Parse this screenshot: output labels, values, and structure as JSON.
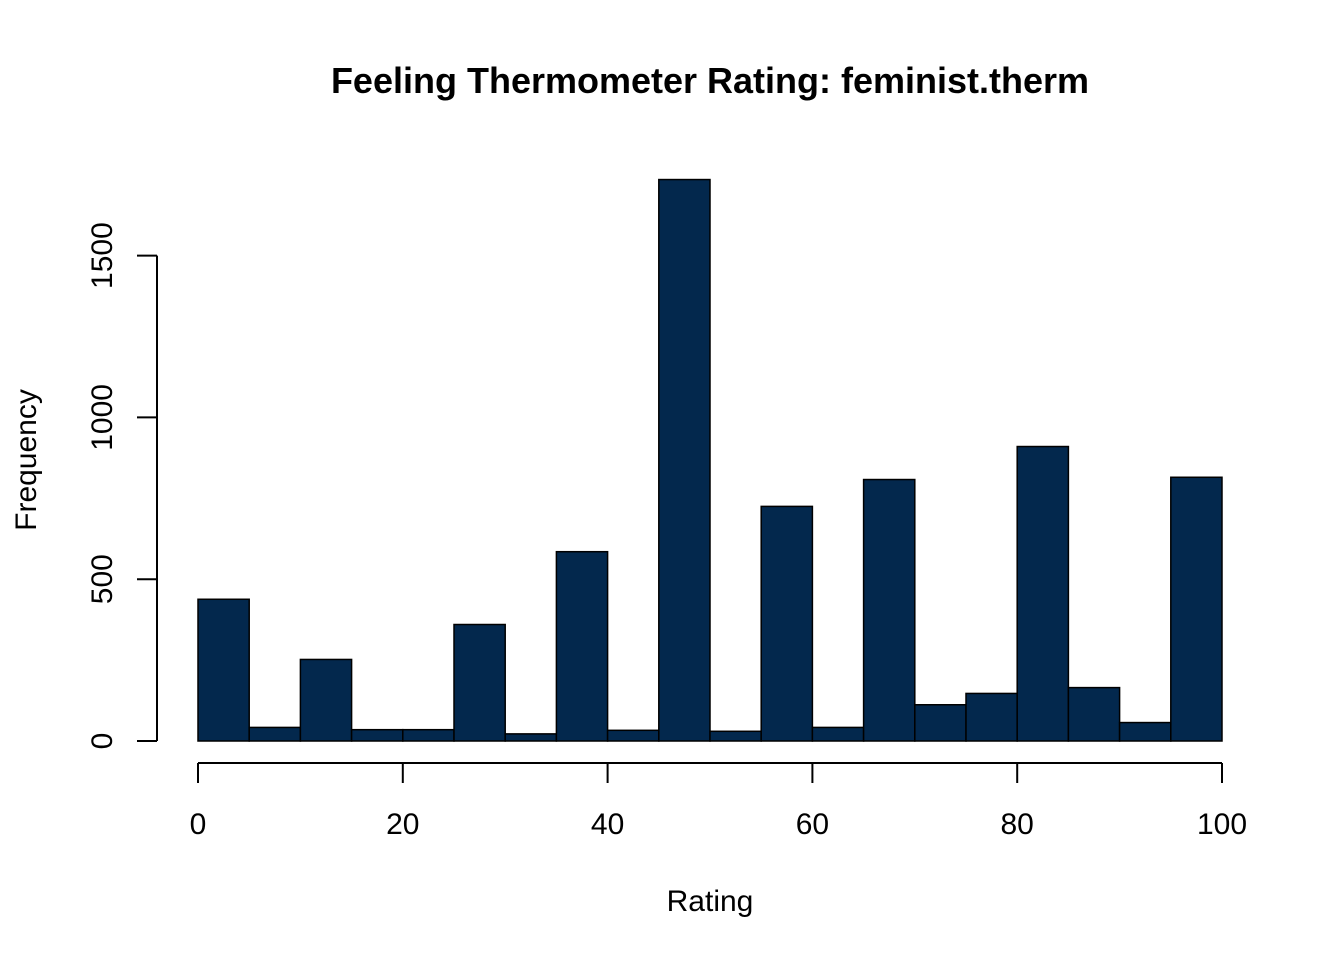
{
  "chart_data": {
    "type": "bar",
    "title": "Feeling Thermometer Rating: feminist.therm",
    "xlabel": "Rating",
    "ylabel": "Frequency",
    "bar_color": "#03284d",
    "xlim": [
      0,
      100
    ],
    "ylim": [
      0,
      1750
    ],
    "x_ticks": [
      0,
      20,
      40,
      60,
      80,
      100
    ],
    "y_ticks": [
      0,
      500,
      1000,
      1500
    ],
    "grid": false,
    "bins": [
      {
        "start": 0,
        "end": 5,
        "count": 438
      },
      {
        "start": 5,
        "end": 10,
        "count": 42
      },
      {
        "start": 10,
        "end": 15,
        "count": 252
      },
      {
        "start": 15,
        "end": 20,
        "count": 35
      },
      {
        "start": 20,
        "end": 25,
        "count": 35
      },
      {
        "start": 25,
        "end": 30,
        "count": 360
      },
      {
        "start": 30,
        "end": 35,
        "count": 22
      },
      {
        "start": 35,
        "end": 40,
        "count": 585
      },
      {
        "start": 40,
        "end": 45,
        "count": 33
      },
      {
        "start": 45,
        "end": 50,
        "count": 1735
      },
      {
        "start": 50,
        "end": 55,
        "count": 30
      },
      {
        "start": 55,
        "end": 60,
        "count": 725
      },
      {
        "start": 60,
        "end": 65,
        "count": 42
      },
      {
        "start": 65,
        "end": 70,
        "count": 808
      },
      {
        "start": 70,
        "end": 75,
        "count": 112
      },
      {
        "start": 75,
        "end": 80,
        "count": 147
      },
      {
        "start": 80,
        "end": 85,
        "count": 910
      },
      {
        "start": 85,
        "end": 90,
        "count": 165
      },
      {
        "start": 90,
        "end": 95,
        "count": 57
      },
      {
        "start": 95,
        "end": 100,
        "count": 815
      }
    ]
  }
}
